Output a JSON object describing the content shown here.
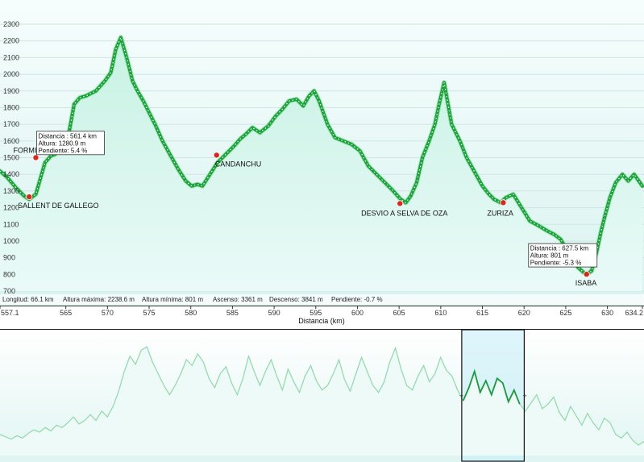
{
  "chart_data": {
    "type": "line",
    "xlabel": "Distancia  (km)",
    "x_ticks": [
      "557.1",
      "565",
      "570",
      "575",
      "580",
      "585",
      "590",
      "595",
      "600",
      "605",
      "610",
      "615",
      "620",
      "625",
      "630",
      "634.2"
    ],
    "y_ticks": [
      "2300",
      "2200",
      "2100",
      "2000",
      "1900",
      "1800",
      "1700",
      "1600",
      "1500",
      "1400",
      "1300",
      "1200",
      "1100",
      "1000",
      "900",
      "800",
      "700"
    ],
    "xlim": [
      557.1,
      634.2
    ],
    "ylim": [
      630,
      2370
    ],
    "series": [
      {
        "x": [
          557.1,
          558.0,
          559.0,
          560.0,
          560.6,
          561.4,
          562.5,
          563.2,
          563.7,
          564.5,
          565.2,
          566.0,
          566.7,
          567.4,
          568.6,
          569.7,
          570.4,
          571.0,
          571.6,
          572.3,
          573.0,
          573.6,
          574.3,
          575.0,
          575.7,
          576.6,
          577.6,
          578.5,
          579.4,
          580.1,
          580.8,
          581.4,
          582.3,
          583.2,
          584.2,
          585.2,
          585.9,
          586.6,
          587.4,
          588.3,
          589.3,
          590.2,
          591.0,
          591.8,
          592.7,
          593.5,
          594.2,
          594.8,
          595.4,
          596.4,
          597.3,
          598.3,
          599.3,
          600.3,
          601.3,
          602.3,
          603.3,
          604.3,
          605.2,
          605.8,
          606.4,
          607.1,
          607.8,
          608.6,
          609.3,
          609.8,
          610.4,
          611.3,
          612.3,
          613.1,
          614.0,
          615.0,
          615.8,
          616.4,
          617.2,
          617.8,
          618.7,
          619.7,
          620.7,
          621.8,
          622.8,
          623.6,
          624.4,
          625.2,
          626.0,
          626.5,
          627.2,
          627.5,
          628.1,
          628.7,
          629.2,
          629.7,
          630.3,
          631.0,
          631.8,
          632.5,
          633.2,
          634.2
        ],
        "y": [
          1420,
          1380,
          1320,
          1270,
          1250,
          1281,
          1470,
          1510,
          1520,
          1560,
          1600,
          1820,
          1860,
          1870,
          1900,
          1960,
          2010,
          2150,
          2220,
          2100,
          1960,
          1900,
          1840,
          1770,
          1700,
          1600,
          1510,
          1430,
          1360,
          1330,
          1340,
          1330,
          1400,
          1470,
          1520,
          1570,
          1610,
          1640,
          1680,
          1650,
          1690,
          1750,
          1790,
          1840,
          1850,
          1810,
          1870,
          1900,
          1840,
          1700,
          1620,
          1600,
          1580,
          1540,
          1450,
          1400,
          1350,
          1300,
          1250,
          1230,
          1270,
          1350,
          1500,
          1600,
          1700,
          1820,
          1950,
          1700,
          1600,
          1500,
          1420,
          1330,
          1280,
          1250,
          1230,
          1260,
          1280,
          1200,
          1120,
          1090,
          1060,
          1040,
          1010,
          940,
          880,
          840,
          810,
          801,
          820,
          930,
          1050,
          1150,
          1260,
          1350,
          1400,
          1360,
          1400,
          1330
        ]
      }
    ],
    "waypoints": [
      {
        "name": "FORMIGAL",
        "x": 561.4,
        "y": 1500
      },
      {
        "name": "SALLENT DE GALLEGO",
        "x": 560.6,
        "y": 1265
      },
      {
        "name": "CANDANCHU",
        "x": 583.1,
        "y": 1515
      },
      {
        "name": "DESVIO A SELVA DE OZA",
        "x": 605.1,
        "y": 1225
      },
      {
        "name": "ZURIZA",
        "x": 617.5,
        "y": 1230
      },
      {
        "name": "ISABA",
        "x": 627.5,
        "y": 801
      }
    ],
    "tooltips": [
      {
        "x": 561.4,
        "y": 1281,
        "lines": [
          "Distancia : 561.4 km",
          "Altura: 1280.9 m",
          "Pendiente: 5.4 %"
        ]
      },
      {
        "x": 627.5,
        "y": 801,
        "lines": [
          "Distancia : 627.5 km",
          "Altura: 801 m",
          "Pendiente: -5.3 %"
        ]
      }
    ],
    "stats": [
      "Longitud: 66.1 km",
      "Altura máxima: 2238.6 m",
      "Altura mínima: 801 m",
      "Ascenso: 3361 m",
      "Descenso: 3841 m",
      "Pendiente: -0.7 %"
    ],
    "overview": {
      "y": [
        0.18,
        0.16,
        0.14,
        0.17,
        0.15,
        0.19,
        0.22,
        0.2,
        0.24,
        0.21,
        0.26,
        0.24,
        0.28,
        0.33,
        0.27,
        0.3,
        0.35,
        0.3,
        0.38,
        0.33,
        0.42,
        0.55,
        0.72,
        0.85,
        0.78,
        0.9,
        0.93,
        0.8,
        0.7,
        0.6,
        0.52,
        0.6,
        0.7,
        0.82,
        0.77,
        0.87,
        0.8,
        0.66,
        0.58,
        0.7,
        0.76,
        0.62,
        0.52,
        0.66,
        0.85,
        0.72,
        0.6,
        0.72,
        0.82,
        0.68,
        0.56,
        0.74,
        0.63,
        0.54,
        0.68,
        0.77,
        0.64,
        0.56,
        0.6,
        0.7,
        0.82,
        0.65,
        0.55,
        0.7,
        0.84,
        0.72,
        0.6,
        0.54,
        0.63,
        0.8,
        0.92,
        0.74,
        0.6,
        0.56,
        0.68,
        0.77,
        0.63,
        0.7,
        0.84,
        0.73,
        0.68,
        0.56,
        0.47,
        0.58,
        0.72,
        0.54,
        0.64,
        0.52,
        0.66,
        0.62,
        0.46,
        0.56,
        0.44,
        0.38,
        0.45,
        0.52,
        0.4,
        0.44,
        0.5,
        0.37,
        0.3,
        0.42,
        0.34,
        0.26,
        0.36,
        0.28,
        0.22,
        0.32,
        0.28,
        0.18,
        0.15,
        0.2,
        0.13,
        0.09,
        0.12
      ],
      "window": [
        0.717,
        0.814
      ]
    },
    "colors": {
      "line": "#1aa33a",
      "fill_top": "#bdf0df",
      "fill_bottom": "#e9f9f7",
      "marker": "#e2231a",
      "overview_line": "#96dbb0",
      "overview_highlight": "#1a9a3a",
      "window": "#c3ecf8"
    }
  }
}
